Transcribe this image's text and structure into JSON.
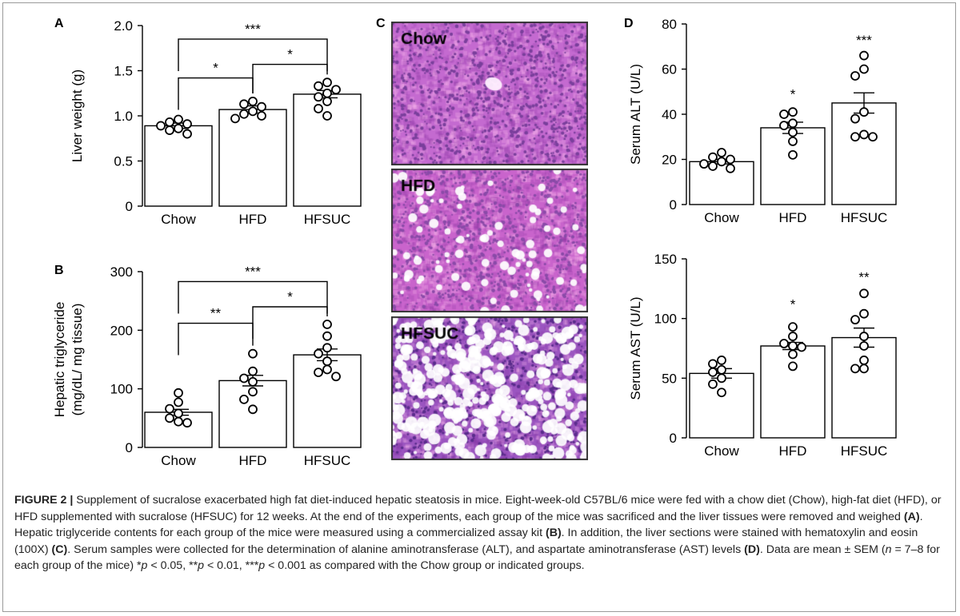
{
  "caption": {
    "label": "FIGURE 2 |",
    "seg1": " Supplement of sucralose exacerbated high fat diet-induced hepatic steatosis in mice. Eight-week-old C57BL/6 mice were fed with a chow diet (Chow), high-fat diet (HFD), or HFD supplemented with sucralose (HFSUC) for 12 weeks. At the end of the experiments, each group of the mice was sacrificed and the liver tissues were removed and weighed ",
    "ref_a": "(A)",
    "seg2": ". Hepatic triglyceride contents for each group of the mice were measured using a commercialized assay kit ",
    "ref_b": "(B)",
    "seg3": ". In addition, the liver sections were stained with hematoxylin and eosin (100X) ",
    "ref_c": "(C)",
    "seg4": ". Serum samples were collected for the determination of alanine aminotransferase (ALT), and aspartate aminotransferase (AST) levels ",
    "ref_d": "(D)",
    "seg5": ". Data are mean ± SEM (",
    "n_italic": "n",
    "seg6": " = 7–8 for each group of the mice) *",
    "p1": "p",
    "seg7": " < 0.05, **",
    "p2": "p",
    "seg8": " < 0.01, ***",
    "p3": "p",
    "seg9": " < 0.001 as compared with the Chow group or indicated groups."
  },
  "panel_letters": {
    "a": "A",
    "b": "B",
    "c": "C",
    "d": "D"
  },
  "histology": {
    "panels": [
      {
        "label": "Chow",
        "base": "#c46ad0",
        "speckle": "#7a3f9c",
        "vacuoles": 0
      },
      {
        "label": "HFD",
        "base": "#c964cc",
        "speckle": "#8a4aa8",
        "vacuoles": 90
      },
      {
        "label": "HFSUC",
        "base": "#9b55c0",
        "speckle": "#5a2c8c",
        "vacuoles": 380
      }
    ]
  },
  "chart_data": [
    {
      "id": "A",
      "type": "bar",
      "categories": [
        "Chow",
        "HFD",
        "HFSUC"
      ],
      "values": [
        0.89,
        1.07,
        1.24
      ],
      "errors": [
        0.03,
        0.04,
        0.04
      ],
      "points": [
        [
          0.96,
          0.93,
          0.91,
          0.89,
          0.86,
          0.84,
          0.8
        ],
        [
          1.16,
          1.13,
          1.1,
          1.05,
          1.02,
          1.0,
          0.97
        ],
        [
          1.37,
          1.33,
          1.29,
          1.25,
          1.21,
          1.16,
          1.08,
          1.0
        ]
      ],
      "ylabel": "Liver weight (g)",
      "ylim": [
        0,
        2.0
      ],
      "yticks": [
        "0",
        "0.5",
        "1.0",
        "1.5",
        "2.0"
      ],
      "significance": [
        {
          "from": 0,
          "to": 1,
          "level": 1.42,
          "label": "*"
        },
        {
          "from": 1,
          "to": 2,
          "level": 1.57,
          "label": "*"
        },
        {
          "from": 0,
          "to": 2,
          "level": 1.85,
          "label": "***"
        }
      ],
      "annotations": []
    },
    {
      "id": "B",
      "type": "bar",
      "categories": [
        "Chow",
        "HFD",
        "HFSUC"
      ],
      "values": [
        60,
        114,
        158
      ],
      "errors": [
        5,
        9,
        10
      ],
      "points": [
        [
          93,
          77,
          66,
          58,
          50,
          44,
          42
        ],
        [
          160,
          130,
          118,
          112,
          95,
          82,
          65
        ],
        [
          210,
          190,
          170,
          160,
          147,
          133,
          128,
          121
        ]
      ],
      "ylabel_lines": [
        "Hepatic triglyceride",
        "(mg/dL/ mg tissue)"
      ],
      "ylim": [
        0,
        300
      ],
      "yticks": [
        "0",
        "100",
        "200",
        "300"
      ],
      "significance": [
        {
          "from": 0,
          "to": 1,
          "level": 212,
          "label": "**"
        },
        {
          "from": 1,
          "to": 2,
          "level": 240,
          "label": "*"
        },
        {
          "from": 0,
          "to": 2,
          "level": 283,
          "label": "***"
        }
      ],
      "annotations": []
    },
    {
      "id": "D-ALT",
      "type": "bar",
      "categories": [
        "Chow",
        "HFD",
        "HFSUC"
      ],
      "values": [
        19,
        34,
        45
      ],
      "errors": [
        1,
        2.5,
        4.5
      ],
      "points": [
        [
          23,
          21,
          20,
          19,
          18,
          17,
          16
        ],
        [
          41,
          40,
          36,
          35,
          32,
          28,
          22
        ],
        [
          66,
          60,
          57,
          41,
          38,
          31,
          30,
          30
        ]
      ],
      "ylabel": "Serum ALT (U/L)",
      "ylim": [
        0,
        80
      ],
      "yticks": [
        "0",
        "20",
        "40",
        "60",
        "80"
      ],
      "significance": [],
      "annotations": [
        {
          "index": 1,
          "value": 49,
          "label": "*"
        },
        {
          "index": 2,
          "value": 73,
          "label": "***"
        }
      ]
    },
    {
      "id": "D-AST",
      "type": "bar",
      "categories": [
        "Chow",
        "HFD",
        "HFSUC"
      ],
      "values": [
        54,
        77,
        84
      ],
      "errors": [
        4,
        3,
        8
      ],
      "points": [
        [
          65,
          62,
          57,
          55,
          50,
          45,
          38
        ],
        [
          93,
          85,
          79,
          77,
          76,
          70,
          60
        ],
        [
          121,
          104,
          99,
          85,
          77,
          65,
          58,
          58
        ]
      ],
      "ylabel": "Serum AST (U/L)",
      "ylim": [
        0,
        150
      ],
      "yticks": [
        "0",
        "50",
        "100",
        "150"
      ],
      "significance": [],
      "annotations": [
        {
          "index": 1,
          "value": 112,
          "label": "*"
        },
        {
          "index": 2,
          "value": 135,
          "label": "**"
        }
      ]
    }
  ]
}
